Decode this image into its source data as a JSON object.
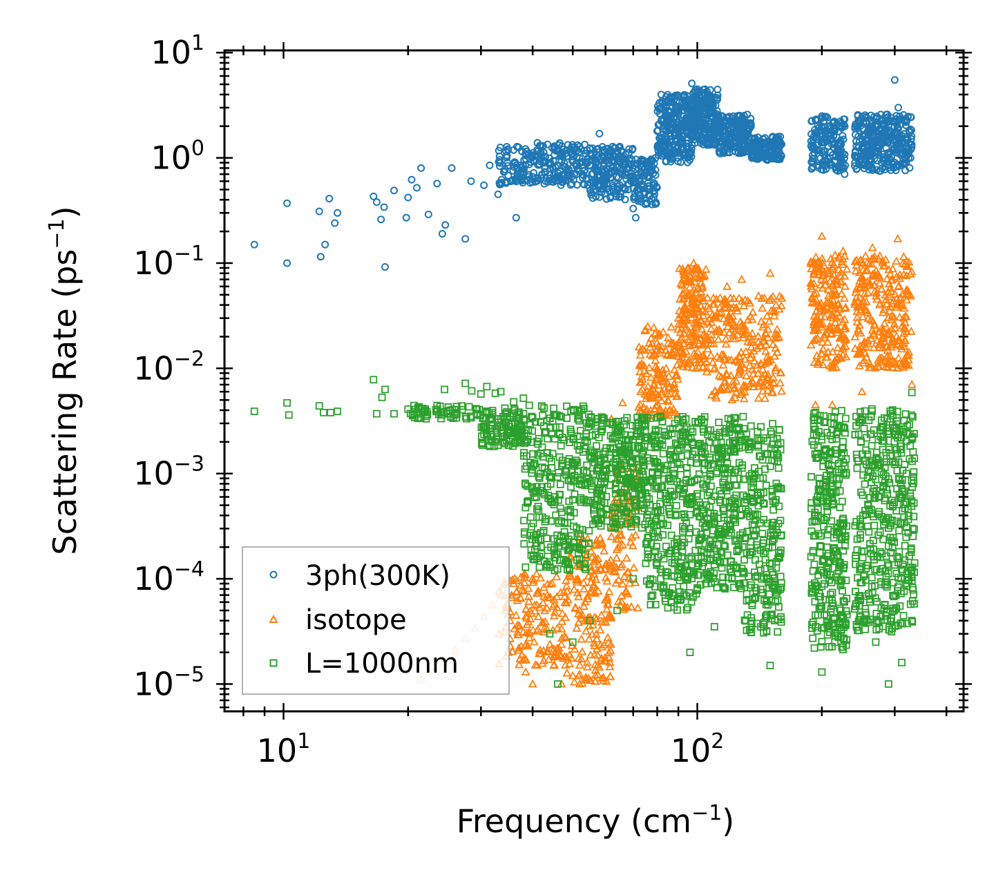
{
  "chart_data": {
    "type": "scatter",
    "xscale": "log",
    "yscale": "log",
    "xlabel": "Frequency (cm",
    "xlabel_unit_exp": "−1",
    "xlabel_close": ")",
    "ylabel": "Scattering Rate (ps",
    "ylabel_unit_exp": "−1",
    "ylabel_close": ")",
    "xlim": [
      7.2,
      440
    ],
    "ylim": [
      5.5e-06,
      10.5
    ],
    "x_ticks": [
      {
        "value": 10,
        "base": "10",
        "exp": "1"
      },
      {
        "value": 100,
        "base": "10",
        "exp": "2"
      }
    ],
    "y_ticks": [
      {
        "value": 10,
        "base": "10",
        "exp": "1"
      },
      {
        "value": 1,
        "base": "10",
        "exp": "0"
      },
      {
        "value": 0.1,
        "base": "10",
        "exp": "−1"
      },
      {
        "value": 0.01,
        "base": "10",
        "exp": "−2"
      },
      {
        "value": 0.001,
        "base": "10",
        "exp": "−3"
      },
      {
        "value": 0.0001,
        "base": "10",
        "exp": "−4"
      },
      {
        "value": 1e-05,
        "base": "10",
        "exp": "−5"
      }
    ],
    "legend_position": "bottom-left",
    "series": [
      {
        "name": "3ph(300K)",
        "marker": "circle",
        "color": "#1f77b4",
        "points": [
          [
            8.5,
            0.15
          ],
          [
            10.2,
            0.37
          ],
          [
            10.2,
            0.1
          ],
          [
            12.2,
            0.31
          ],
          [
            12.3,
            0.115
          ],
          [
            12.6,
            0.15
          ],
          [
            12.9,
            0.41
          ],
          [
            13.3,
            0.24
          ],
          [
            13.5,
            0.3
          ],
          [
            16.5,
            0.43
          ],
          [
            16.8,
            0.38
          ],
          [
            17.2,
            0.26
          ],
          [
            17.5,
            0.34
          ],
          [
            17.6,
            0.092
          ],
          [
            18.5,
            0.49
          ],
          [
            19.8,
            0.27
          ],
          [
            20,
            0.42
          ],
          [
            20.4,
            0.62
          ],
          [
            21,
            0.52
          ],
          [
            21.5,
            0.8
          ],
          [
            22.4,
            0.29
          ],
          [
            23.5,
            0.57
          ],
          [
            24.2,
            0.19
          ],
          [
            24.6,
            0.23
          ],
          [
            25.5,
            0.8
          ],
          [
            27.5,
            0.17
          ],
          [
            28.4,
            0.6
          ],
          [
            30.5,
            0.55
          ],
          [
            31.5,
            0.85
          ],
          [
            33,
            0.45
          ],
          [
            34.5,
            1.15
          ],
          [
            36.5,
            0.27
          ],
          [
            38,
            0.7
          ],
          [
            40.5,
            1.05
          ],
          [
            43,
            0.6
          ],
          [
            46,
            0.85
          ],
          [
            50,
            1.1
          ],
          [
            54,
            0.9
          ],
          [
            58,
            1.7
          ],
          [
            63,
            0.75
          ],
          [
            67,
            0.5
          ],
          [
            70,
            0.33
          ],
          [
            71,
            0.27
          ],
          [
            76,
            0.9
          ],
          [
            80,
            1.8
          ],
          [
            85,
            2.8
          ],
          [
            90,
            3.8
          ],
          [
            97,
            5.1
          ],
          [
            100,
            4.5
          ],
          [
            105,
            3.3
          ],
          [
            110,
            2.6
          ],
          [
            116,
            2.2
          ],
          [
            122,
            1.9
          ],
          [
            130,
            1.6
          ],
          [
            140,
            1.45
          ],
          [
            150,
            1.2
          ],
          [
            157,
            1.0
          ],
          [
            193,
            2.3
          ],
          [
            200,
            2.5
          ],
          [
            210,
            1.9
          ],
          [
            220,
            1.4
          ],
          [
            225,
            0.9
          ],
          [
            227,
            0.7
          ],
          [
            245,
            1.6
          ],
          [
            260,
            1.9
          ],
          [
            275,
            1.4
          ],
          [
            290,
            1.1
          ],
          [
            300,
            5.5
          ],
          [
            306,
            3.0
          ],
          [
            312,
            1.4
          ],
          [
            320,
            0.9
          ],
          [
            328,
            1.2
          ]
        ],
        "bands": [
          [
            33,
            40,
            0.55,
            1.3,
            80
          ],
          [
            40,
            55,
            0.55,
            1.4,
            160
          ],
          [
            55,
            70,
            0.4,
            1.3,
            180
          ],
          [
            70,
            80,
            0.35,
            1.0,
            100
          ],
          [
            80,
            97,
            0.9,
            4.0,
            260
          ],
          [
            97,
            112,
            1.3,
            4.5,
            240
          ],
          [
            112,
            135,
            1.1,
            2.6,
            180
          ],
          [
            135,
            160,
            0.95,
            1.6,
            140
          ],
          [
            188,
            228,
            0.75,
            2.5,
            160
          ],
          [
            240,
            330,
            0.75,
            2.6,
            320
          ]
        ]
      },
      {
        "name": "isotope",
        "marker": "triangle",
        "color": "#ff7f0e",
        "points": [
          [
            21.5,
            1.1e-05
          ],
          [
            23,
            1.3e-05
          ],
          [
            24.5,
            1.6e-05
          ],
          [
            26,
            2.1e-05
          ],
          [
            27.5,
            2.7e-05
          ],
          [
            29,
            3.4e-05
          ],
          [
            30.5,
            4.4e-05
          ],
          [
            32,
            5.6e-05
          ],
          [
            34,
            6.8e-05
          ],
          [
            36,
            9e-05
          ],
          [
            38.5,
            1.3e-05
          ],
          [
            40,
            1e-05
          ],
          [
            45,
            1.5e-05
          ],
          [
            47,
            1e-05
          ],
          [
            50,
            1.2e-05
          ],
          [
            52,
            1e-05
          ],
          [
            62,
            0.0033
          ],
          [
            66,
            0.0047
          ],
          [
            80,
            0.01
          ],
          [
            90,
            0.03
          ],
          [
            98,
            0.1
          ],
          [
            103,
            0.06
          ],
          [
            118,
            0.06
          ],
          [
            128,
            0.07
          ],
          [
            150,
            0.08
          ],
          [
            193,
            0.0045
          ],
          [
            200,
            0.18
          ],
          [
            212,
            0.0045
          ],
          [
            225,
            0.13
          ],
          [
            250,
            0.006
          ],
          [
            265,
            0.14
          ],
          [
            305,
            0.17
          ],
          [
            330,
            0.007
          ]
        ],
        "bands": [
          [
            33,
            48,
            1.5e-05,
            0.00012,
            160
          ],
          [
            48,
            62,
            1e-05,
            0.00025,
            180
          ],
          [
            62,
            72,
            5e-05,
            0.0012,
            100
          ],
          [
            72,
            90,
            0.0035,
            0.025,
            160
          ],
          [
            90,
            105,
            0.01,
            0.09,
            180
          ],
          [
            105,
            160,
            0.005,
            0.05,
            260
          ],
          [
            188,
            230,
            0.01,
            0.12,
            200
          ],
          [
            240,
            330,
            0.01,
            0.12,
            280
          ]
        ]
      },
      {
        "name": "L=1000nm",
        "marker": "square",
        "color": "#2ca02c",
        "points": [
          [
            8.5,
            0.0039
          ],
          [
            10.2,
            0.0047
          ],
          [
            10.3,
            0.0036
          ],
          [
            12.2,
            0.0044
          ],
          [
            12.5,
            0.0038
          ],
          [
            13,
            0.0038
          ],
          [
            13.5,
            0.0039
          ],
          [
            16.5,
            0.0078
          ],
          [
            16.8,
            0.0037
          ],
          [
            17.3,
            0.0053
          ],
          [
            17.6,
            0.0063
          ],
          [
            18.5,
            0.0037
          ],
          [
            20,
            0.0041
          ],
          [
            20.5,
            0.0036
          ],
          [
            22,
            0.0041
          ],
          [
            23.5,
            0.0039
          ],
          [
            24.5,
            0.0063
          ],
          [
            25,
            0.0037
          ],
          [
            27.5,
            0.0072
          ],
          [
            28.5,
            0.0061
          ],
          [
            30,
            0.0057
          ],
          [
            31,
            0.0067
          ],
          [
            32.5,
            0.0058
          ],
          [
            33.5,
            0.006
          ],
          [
            36,
            0.0048
          ],
          [
            38,
            0.0052
          ],
          [
            40,
            0.0034
          ],
          [
            44,
            3e-05
          ],
          [
            46,
            1e-05
          ],
          [
            50,
            2.5e-05
          ],
          [
            55,
            4e-05
          ],
          [
            64,
            5e-05
          ],
          [
            70,
            0.0001
          ],
          [
            78,
            7e-05
          ],
          [
            96,
            2e-05
          ],
          [
            110,
            3.5e-05
          ],
          [
            150,
            1.5e-05
          ],
          [
            200,
            1.3e-05
          ],
          [
            228,
            3.6e-05
          ],
          [
            270,
            2.5e-05
          ],
          [
            290,
            1e-05
          ],
          [
            312,
            1.6e-05
          ],
          [
            330,
            0.0059
          ]
        ],
        "bands": [
          [
            20,
            30,
            0.0033,
            0.0045,
            60
          ],
          [
            30,
            38,
            0.0018,
            0.0042,
            120
          ],
          [
            38,
            55,
            0.00012,
            0.0045,
            320
          ],
          [
            55,
            75,
            0.0003,
            0.0035,
            300
          ],
          [
            75,
            100,
            5e-05,
            0.0035,
            320
          ],
          [
            100,
            130,
            8e-05,
            0.0035,
            300
          ],
          [
            130,
            160,
            3e-05,
            0.003,
            240
          ],
          [
            188,
            230,
            2e-05,
            0.004,
            320
          ],
          [
            240,
            335,
            3e-05,
            0.0042,
            420
          ]
        ]
      }
    ]
  }
}
